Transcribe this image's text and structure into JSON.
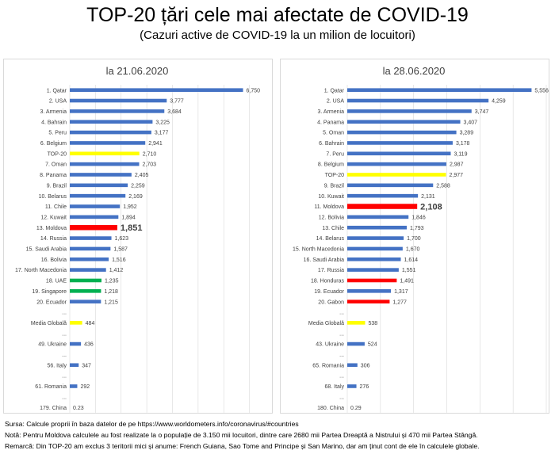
{
  "header": {
    "title": "TOP-20 țări cele mai afectate de COVID-19",
    "subtitle": "(Cazuri active de COVID-19 la un milion de locuitori)"
  },
  "colors": {
    "default": "#4472c4",
    "highlight_top20": "#ffff00",
    "highlight_moldova": "#ff0000",
    "highlight_green": "#00b050",
    "gridline": "#d9d9d9"
  },
  "chart_data": [
    {
      "type": "bar",
      "orientation": "horizontal",
      "title": "la 21.06.2020",
      "xlim": [
        0,
        8000
      ],
      "x_ticks": [
        "0.00",
        "1,000.00",
        "2,000.00",
        "3,000.00",
        "4,000.00",
        "5,000.00",
        "6,000.00",
        "7,000.00",
        "8,000.00"
      ],
      "grid": true,
      "categories": [
        "1. Qatar",
        "2. USA",
        "3. Armenia",
        "4. Bahrain",
        "5. Peru",
        "6. Belgium",
        "TOP-20",
        "7. Oman",
        "8. Panama",
        "9. Brazil",
        "10. Belarus",
        "11. Chile",
        "12. Kuwait",
        "13. Moldova",
        "14. Russia",
        "15. Saudi Arabia",
        "16. Bolivia",
        "17. North Macedonia",
        "18. UAE",
        "19. Singapore",
        "20. Ecuador",
        "...",
        "Media Globală",
        "...",
        "49. Ukraine",
        "...",
        "56. Italy",
        "...",
        "61. Romania",
        "...",
        "179. China"
      ],
      "values": [
        6750,
        3777,
        3684,
        3225,
        3177,
        2941,
        2710,
        2703,
        2405,
        2259,
        2169,
        1952,
        1894,
        1851,
        1623,
        1587,
        1516,
        1412,
        1235,
        1218,
        1215,
        null,
        484,
        null,
        436,
        null,
        347,
        null,
        292,
        null,
        0.23
      ],
      "labels": [
        "6,750",
        "3,777",
        "3,684",
        "3,225",
        "3,177",
        "2,941",
        "2,710",
        "2,703",
        "2,405",
        "2,259",
        "2,169",
        "1,952",
        "1,894",
        "1,851",
        "1,623",
        "1,587",
        "1,516",
        "1,412",
        "1,235",
        "1,218",
        "1,215",
        "",
        "484",
        "",
        "436",
        "",
        "347",
        "",
        "292",
        "",
        "0.23"
      ],
      "highlights": {
        "TOP-20": "yellow",
        "Media Globală": "yellow",
        "13. Moldova": "red",
        "18. UAE": "green",
        "19. Singapore": "green"
      }
    },
    {
      "type": "bar",
      "orientation": "horizontal",
      "title": "la 28.06.2020",
      "xlim": [
        0,
        6000
      ],
      "x_ticks": [
        "0.00",
        "1000.00",
        "2000.00",
        "3000.00",
        "4000.00",
        "5000.00",
        "6000.00"
      ],
      "grid": true,
      "categories": [
        "1. Qatar",
        "2. USA",
        "3. Armenia",
        "4. Panama",
        "5. Oman",
        "6. Bahrain",
        "7. Peru",
        "8. Belgium",
        "TOP-20",
        "9. Brazil",
        "10. Kuwait",
        "11. Moldova",
        "12. Bolivia",
        "13. Chile",
        "14. Belarus",
        "15. North Macedonia",
        "16. Saudi Arabia",
        "17. Russia",
        "18. Honduras",
        "19. Ecuador",
        "20. Gabon",
        "...",
        "Media Globală",
        "...",
        "43. Ukraine",
        "...",
        "65. Romania",
        "...",
        "68. Italy",
        "...",
        "180. China"
      ],
      "values": [
        5556,
        4259,
        3747,
        3407,
        3289,
        3178,
        3119,
        2987,
        2977,
        2588,
        2131,
        2108,
        1846,
        1793,
        1700,
        1670,
        1614,
        1551,
        1491,
        1317,
        1277,
        null,
        538,
        null,
        524,
        null,
        306,
        null,
        276,
        null,
        0.29
      ],
      "labels": [
        "5,556",
        "4,259",
        "3,747",
        "3,407",
        "3,289",
        "3,178",
        "3,119",
        "2,987",
        "2,977",
        "2,588",
        "2,131",
        "2,108",
        "1,846",
        "1,793",
        "1,700",
        "1,670",
        "1,614",
        "1,551",
        "1,491",
        "1,317",
        "1,277",
        "",
        "538",
        "",
        "524",
        "",
        "306",
        "",
        "276",
        "",
        "0.29"
      ],
      "highlights": {
        "TOP-20": "yellow",
        "Media Globală": "yellow",
        "11. Moldova": "red",
        "18. Honduras": "red",
        "20. Gabon": "red"
      }
    }
  ],
  "footer": {
    "source": "Sursa: Calcule proprii în baza datelor de pe https://www.worldometers.info/coronavirus/#countries",
    "note": "Notă: Pentru Moldova calculele au fost realizate la o populație de 3.150 mii locuitori, dintre care 2680 mii Partea Dreaptă a Nistrului și 470 mii Partea Stângă.",
    "remark": "Remarcă: Din TOP-20 am exclus 3 teritorii mici și anume: French Guiana, Sao Tome and Principe și San Marino, dar am ținut cont de ele în calculele globale."
  }
}
